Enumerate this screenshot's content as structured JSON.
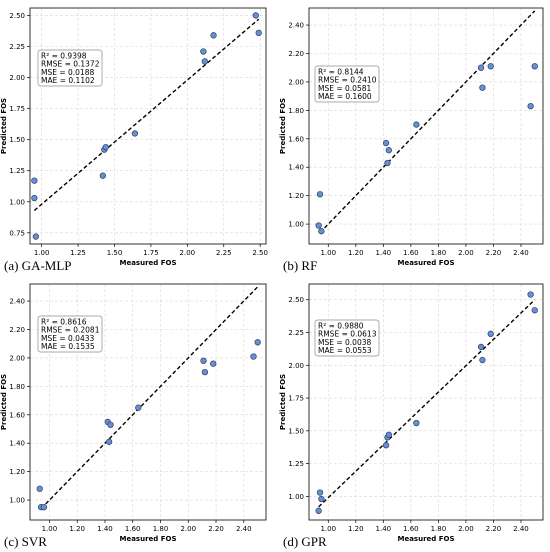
{
  "chart_data": [
    {
      "type": "scatter",
      "caption": "(a) GA-MLP",
      "xlabel": "Measured FOS",
      "ylabel": "Predicted FOS",
      "xlim": [
        0.92,
        2.54
      ],
      "ylim": [
        0.66,
        2.56
      ],
      "xticks": [
        "1.00",
        "1.25",
        "1.50",
        "1.75",
        "2.00",
        "2.25",
        "2.50"
      ],
      "yticks": [
        "0.75",
        "1.00",
        "1.25",
        "1.50",
        "1.75",
        "2.00",
        "2.25",
        "2.50"
      ],
      "xtick_values": [
        1.0,
        1.25,
        1.5,
        1.75,
        2.0,
        2.25,
        2.5
      ],
      "ytick_values": [
        0.75,
        1.0,
        1.25,
        1.5,
        1.75,
        2.0,
        2.25,
        2.5
      ],
      "grid": true,
      "stats": [
        "R² = 0.9398",
        "RMSE = 0.1372",
        "MSE = 0.0188",
        "MAE = 0.1102"
      ],
      "fit_line": [
        [
          0.95,
          0.93
        ],
        [
          2.49,
          2.47
        ]
      ],
      "points": [
        [
          0.95,
          1.17
        ],
        [
          0.95,
          1.03
        ],
        [
          0.96,
          0.72
        ],
        [
          1.42,
          1.21
        ],
        [
          1.43,
          1.42
        ],
        [
          1.44,
          1.44
        ],
        [
          1.64,
          1.55
        ],
        [
          2.11,
          2.21
        ],
        [
          2.12,
          2.13
        ],
        [
          2.18,
          2.34
        ],
        [
          2.47,
          2.5
        ],
        [
          2.49,
          2.36
        ]
      ]
    },
    {
      "type": "scatter",
      "caption": "(b) RF",
      "xlabel": "Measured FOS",
      "ylabel": "Predicted FOS",
      "xlim": [
        0.86,
        2.56
      ],
      "ylim": [
        0.86,
        2.52
      ],
      "xticks": [
        "1.00",
        "1.20",
        "1.40",
        "1.60",
        "1.80",
        "2.00",
        "2.20",
        "2.40"
      ],
      "yticks": [
        "1.00",
        "1.20",
        "1.40",
        "1.60",
        "1.80",
        "2.00",
        "2.20",
        "2.40"
      ],
      "xtick_values": [
        1.0,
        1.2,
        1.4,
        1.6,
        1.8,
        2.0,
        2.2,
        2.4
      ],
      "ytick_values": [
        1.0,
        1.2,
        1.4,
        1.6,
        1.8,
        2.0,
        2.2,
        2.4
      ],
      "grid": true,
      "stats": [
        "R² = 0.8144",
        "RMSE = 0.2410",
        "MSE = 0.0581",
        "MAE = 0.1600"
      ],
      "fit_line": [
        [
          0.94,
          0.94
        ],
        [
          2.5,
          2.5
        ]
      ],
      "points": [
        [
          0.93,
          0.99
        ],
        [
          0.94,
          1.21
        ],
        [
          0.95,
          0.95
        ],
        [
          1.42,
          1.57
        ],
        [
          1.43,
          1.43
        ],
        [
          1.44,
          1.52
        ],
        [
          1.64,
          1.7
        ],
        [
          2.11,
          2.1
        ],
        [
          2.12,
          1.96
        ],
        [
          2.18,
          2.11
        ],
        [
          2.47,
          1.83
        ],
        [
          2.5,
          2.11
        ]
      ]
    },
    {
      "type": "scatter",
      "caption": "(c) SVR",
      "xlabel": "Measured FOS",
      "ylabel": "Predicted FOS",
      "xlim": [
        0.86,
        2.56
      ],
      "ylim": [
        0.86,
        2.52
      ],
      "xticks": [
        "1.00",
        "1.20",
        "1.40",
        "1.60",
        "1.80",
        "2.00",
        "2.20",
        "2.40"
      ],
      "yticks": [
        "1.00",
        "1.20",
        "1.40",
        "1.60",
        "1.80",
        "2.00",
        "2.20",
        "2.40"
      ],
      "xtick_values": [
        1.0,
        1.2,
        1.4,
        1.6,
        1.8,
        2.0,
        2.2,
        2.4
      ],
      "ytick_values": [
        1.0,
        1.2,
        1.4,
        1.6,
        1.8,
        2.0,
        2.2,
        2.4
      ],
      "grid": true,
      "stats": [
        "R² = 0.8616",
        "RMSE = 0.2081",
        "MSE = 0.0433",
        "MAE = 0.1535"
      ],
      "fit_line": [
        [
          0.94,
          0.94
        ],
        [
          2.5,
          2.5
        ]
      ],
      "points": [
        [
          0.93,
          1.08
        ],
        [
          0.94,
          0.95
        ],
        [
          0.96,
          0.95
        ],
        [
          1.42,
          1.55
        ],
        [
          1.43,
          1.41
        ],
        [
          1.44,
          1.53
        ],
        [
          1.64,
          1.65
        ],
        [
          2.11,
          1.98
        ],
        [
          2.12,
          1.9
        ],
        [
          2.18,
          1.96
        ],
        [
          2.47,
          2.01
        ],
        [
          2.5,
          2.11
        ]
      ]
    },
    {
      "type": "scatter",
      "caption": "(d) GPR",
      "xlabel": "Measured FOS",
      "ylabel": "Predicted FOS",
      "xlim": [
        0.86,
        2.56
      ],
      "ylim": [
        0.82,
        2.62
      ],
      "xticks": [
        "1.00",
        "1.20",
        "1.40",
        "1.60",
        "1.80",
        "2.00",
        "2.20",
        "2.40"
      ],
      "yticks": [
        "1.00",
        "1.25",
        "1.50",
        "1.75",
        "2.00",
        "2.25",
        "2.50"
      ],
      "xtick_values": [
        1.0,
        1.2,
        1.4,
        1.6,
        1.8,
        2.0,
        2.2,
        2.4
      ],
      "ytick_values": [
        1.0,
        1.25,
        1.5,
        1.75,
        2.0,
        2.25,
        2.5
      ],
      "grid": true,
      "stats": [
        "R² = 0.9880",
        "RMSE = 0.0613",
        "MSE = 0.0038",
        "MAE = 0.0553"
      ],
      "fit_line": [
        [
          0.93,
          0.92
        ],
        [
          2.5,
          2.5
        ]
      ],
      "points": [
        [
          0.93,
          0.89
        ],
        [
          0.94,
          1.03
        ],
        [
          0.95,
          0.98
        ],
        [
          1.42,
          1.39
        ],
        [
          1.43,
          1.45
        ],
        [
          1.44,
          1.47
        ],
        [
          1.64,
          1.56
        ],
        [
          2.11,
          2.14
        ],
        [
          2.12,
          2.04
        ],
        [
          2.18,
          2.24
        ],
        [
          2.47,
          2.54
        ],
        [
          2.5,
          2.42
        ]
      ]
    }
  ]
}
